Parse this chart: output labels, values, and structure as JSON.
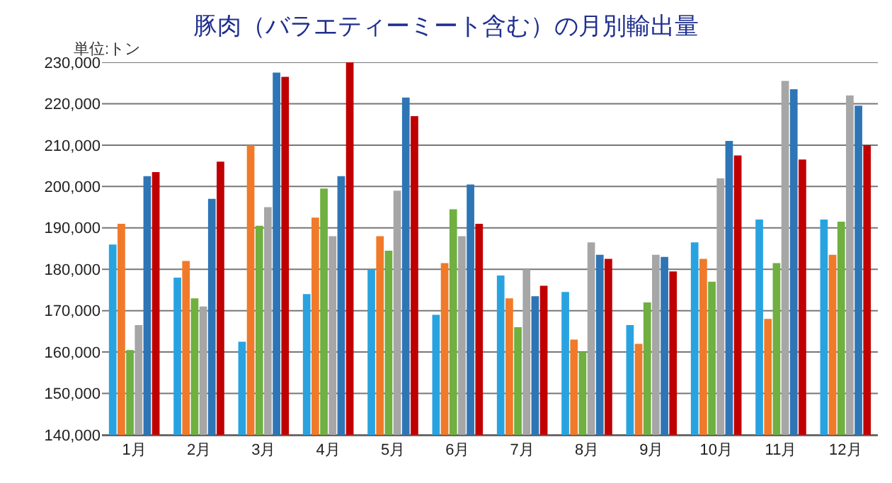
{
  "chart_data": {
    "type": "bar",
    "title": "豚肉（バラエティーミート含む）の月別輸出量",
    "ylabel": "単位:トン",
    "categories": [
      "1月",
      "2月",
      "3月",
      "4月",
      "5月",
      "6月",
      "7月",
      "8月",
      "9月",
      "10月",
      "11月",
      "12月"
    ],
    "series": [
      {
        "color": "#29a3e0",
        "values": [
          186000,
          178000,
          162500,
          174000,
          180000,
          169000,
          178500,
          174500,
          166500,
          186500,
          192000,
          192000
        ]
      },
      {
        "color": "#f07a2a",
        "values": [
          191000,
          182000,
          210000,
          192500,
          188000,
          181500,
          173000,
          163000,
          162000,
          182500,
          168000,
          183500
        ]
      },
      {
        "color": "#6fb040",
        "values": [
          160500,
          173000,
          190500,
          199500,
          184500,
          194500,
          166000,
          160000,
          172000,
          177000,
          181500,
          191500
        ]
      },
      {
        "color": "#a6a6a6",
        "values": [
          166500,
          171000,
          195000,
          188000,
          199000,
          188000,
          180000,
          186500,
          183500,
          202000,
          225500,
          222000
        ]
      },
      {
        "color": "#2e75b6",
        "values": [
          202500,
          197000,
          227500,
          202500,
          221500,
          200500,
          173500,
          183500,
          183000,
          211000,
          223500,
          219500
        ]
      },
      {
        "color": "#c00000",
        "values": [
          203500,
          206000,
          226500,
          230000,
          217000,
          191000,
          176000,
          182500,
          179500,
          207500,
          206500,
          210000
        ]
      }
    ],
    "ylim": [
      140000,
      230000
    ],
    "yticks": [
      {
        "value": 140000,
        "label": "140,000"
      },
      {
        "value": 150000,
        "label": "150,000"
      },
      {
        "value": 160000,
        "label": "160,000"
      },
      {
        "value": 170000,
        "label": "170,000"
      },
      {
        "value": 180000,
        "label": "180,000"
      },
      {
        "value": 190000,
        "label": "190,000"
      },
      {
        "value": 200000,
        "label": "200,000"
      },
      {
        "value": 210000,
        "label": "210,000"
      },
      {
        "value": 220000,
        "label": "220,000"
      },
      {
        "value": 230000,
        "label": "230,000"
      }
    ],
    "grid": "y"
  }
}
